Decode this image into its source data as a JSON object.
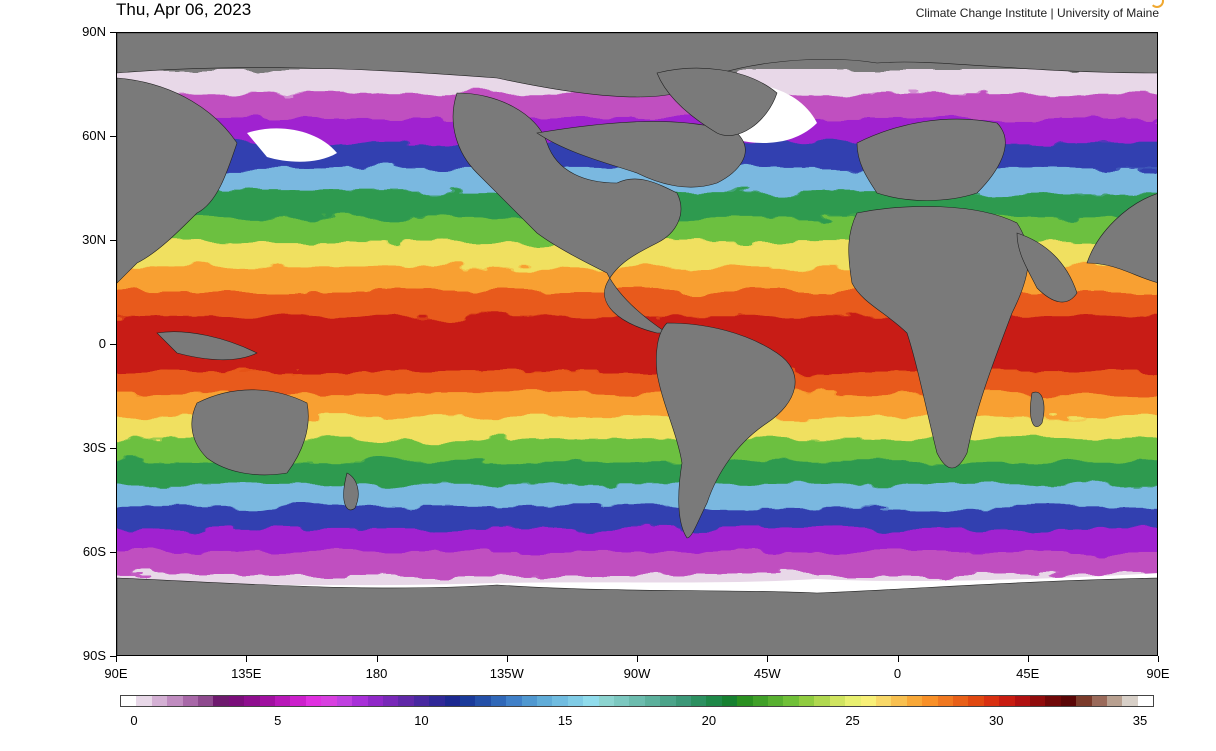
{
  "header": {
    "date": "Thu, Apr 06, 2023",
    "credit": "Climate Change Institute | University of Maine"
  },
  "map": {
    "lat_labels": [
      "90N",
      "60N",
      "30N",
      "0",
      "30S",
      "60S",
      "90S"
    ],
    "lon_labels": [
      "90E",
      "135E",
      "180",
      "135W",
      "90W",
      "45W",
      "0",
      "45E",
      "90E"
    ],
    "land_color": "#7a7a7a",
    "ice_color": "#ffffff",
    "bands": [
      {
        "color": "#e8d8e8"
      },
      {
        "color": "#c050c0"
      },
      {
        "color": "#a020d0"
      },
      {
        "color": "#3040b0"
      },
      {
        "color": "#7ab8e0"
      },
      {
        "color": "#2e9a50"
      },
      {
        "color": "#6cc040"
      },
      {
        "color": "#f0e060"
      },
      {
        "color": "#f8a030"
      },
      {
        "color": "#e85a1a"
      },
      {
        "color": "#c81e12"
      }
    ]
  },
  "colorbar": {
    "tick_labels": [
      "0",
      "5",
      "10",
      "15",
      "20",
      "25",
      "30",
      "35"
    ],
    "colors": [
      "#ffffff",
      "#e8d8e8",
      "#d4b0d4",
      "#c08cc0",
      "#a868a8",
      "#8e4a8e",
      "#6e1a6e",
      "#7a0e7a",
      "#8e0e8e",
      "#a010a0",
      "#b818b8",
      "#cc20cc",
      "#e030e0",
      "#d840e0",
      "#c040e0",
      "#a830d8",
      "#9028c8",
      "#7828b8",
      "#6028a8",
      "#4828a0",
      "#302898",
      "#1c2890",
      "#1a3a9a",
      "#2450a8",
      "#3068b8",
      "#4080c8",
      "#5098d0",
      "#60acd8",
      "#70bce0",
      "#80cce6",
      "#90dcec",
      "#8cd4d0",
      "#7cc8c0",
      "#6cbcae",
      "#5cb09c",
      "#4ca48a",
      "#3c9878",
      "#2c9060",
      "#1e8848",
      "#168030",
      "#2a9020",
      "#40a028",
      "#58b030",
      "#70c038",
      "#90cc40",
      "#b0d850",
      "#d0e460",
      "#e8f070",
      "#f8f078",
      "#f8d868",
      "#f8c050",
      "#f8a838",
      "#f89028",
      "#f07820",
      "#e86018",
      "#e04810",
      "#d83010",
      "#c81c10",
      "#b01010",
      "#900c0c",
      "#700808",
      "#5a0606",
      "#7a3a2a",
      "#9a6a5a",
      "#b8a090",
      "#d8d0c8",
      "#ffffff"
    ]
  }
}
